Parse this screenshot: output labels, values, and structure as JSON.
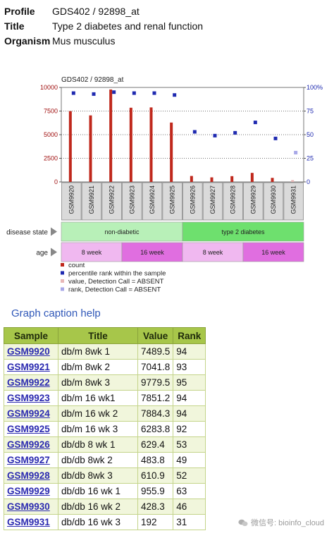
{
  "meta": {
    "profile_label": "Profile",
    "profile_value": "GDS402 / 92898_at",
    "title_label": "Title",
    "title_value": "Type 2 diabetes and renal function",
    "organism_label": "Organism",
    "organism_value": "Mus musculus"
  },
  "chart_data": {
    "type": "bar",
    "title": "GDS402 / 92898_at",
    "categories": [
      "GSM9920",
      "GSM9921",
      "GSM9922",
      "GSM9923",
      "GSM9924",
      "GSM9925",
      "GSM9926",
      "GSM9927",
      "GSM9928",
      "GSM9929",
      "GSM9930",
      "GSM9931"
    ],
    "series": [
      {
        "name": "count",
        "axis": "left",
        "color": "#c0281c",
        "values": [
          7489.5,
          7041.8,
          9779.5,
          7851.2,
          7884.3,
          6283.8,
          629.4,
          483.8,
          610.9,
          955.9,
          428.3,
          192
        ]
      },
      {
        "name": "percentile rank within the sample",
        "axis": "right",
        "color": "#1f2ab0",
        "values": [
          94,
          93,
          95,
          94,
          94,
          92,
          53,
          49,
          52,
          63,
          46,
          null
        ]
      }
    ],
    "absent": {
      "index": 11,
      "value_color": "#e8b8b8",
      "rank_value": 31,
      "rank_color": "#a8a8e8"
    },
    "ylim_left": [
      0,
      10000
    ],
    "yticks_left": [
      "0",
      "2500",
      "5000",
      "7500",
      "10000"
    ],
    "ylim_right": [
      0,
      100
    ],
    "yticks_right": [
      "0",
      "25",
      "50",
      "75",
      "100%"
    ],
    "grid": "dotted horizontal",
    "rows": [
      {
        "label": "disease state",
        "groups": [
          {
            "text": "non-diabetic",
            "span": 6,
            "color": "#b8f0b8"
          },
          {
            "text": "type 2 diabetes",
            "span": 6,
            "color": "#6ee06e"
          }
        ]
      },
      {
        "label": "age",
        "groups": [
          {
            "text": "8 week",
            "span": 3,
            "color": "#f0b8f0"
          },
          {
            "text": "16 week",
            "span": 3,
            "color": "#e06ee0"
          },
          {
            "text": "8 week",
            "span": 3,
            "color": "#f0b8f0"
          },
          {
            "text": "16 week",
            "span": 3,
            "color": "#e06ee0"
          }
        ]
      }
    ],
    "legend": [
      {
        "text": "count",
        "color": "#c0281c"
      },
      {
        "text": "percentile rank within the sample",
        "color": "#1f2ab0"
      },
      {
        "text": "value, Detection Call = ABSENT",
        "color": "#e8b8b8"
      },
      {
        "text": "rank, Detection Call = ABSENT",
        "color": "#a8a8e8"
      }
    ]
  },
  "help_link": "Graph caption help",
  "table": {
    "headers": [
      "Sample",
      "Title",
      "Value",
      "Rank"
    ],
    "rows": [
      [
        "GSM9920",
        "db/m 8wk 1",
        "7489.5",
        "94"
      ],
      [
        "GSM9921",
        "db/m 8wk 2",
        "7041.8",
        "93"
      ],
      [
        "GSM9922",
        "db/m 8wk 3",
        "9779.5",
        "95"
      ],
      [
        "GSM9923",
        "db/m 16 wk1",
        "7851.2",
        "94"
      ],
      [
        "GSM9924",
        "db/m 16 wk 2",
        "7884.3",
        "94"
      ],
      [
        "GSM9925",
        "db/m 16 wk 3",
        "6283.8",
        "92"
      ],
      [
        "GSM9926",
        "db/db 8 wk 1",
        "629.4",
        "53"
      ],
      [
        "GSM9927",
        "db/db 8wk 2",
        "483.8",
        "49"
      ],
      [
        "GSM9928",
        "db/db 8wk 3",
        "610.9",
        "52"
      ],
      [
        "GSM9929",
        "db/db 16 wk 1",
        "955.9",
        "63"
      ],
      [
        "GSM9930",
        "db/db 16 wk 2",
        "428.3",
        "46"
      ],
      [
        "GSM9931",
        "db/db 16 wk 3",
        "192",
        "31"
      ]
    ]
  },
  "watermark": "微信号: bioinfo_cloud"
}
